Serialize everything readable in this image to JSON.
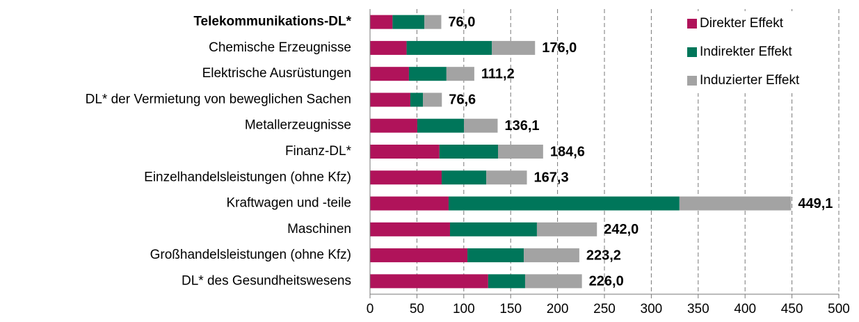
{
  "chart_data": {
    "type": "stacked-bar-horizontal",
    "categories": [
      "Telekommunikations-DL*",
      "Chemische Erzeugnisse",
      "Elektrische Ausrüstungen",
      "DL* der Vermietung von beweglichen Sachen",
      "Metallerzeugnisse",
      "Finanz-DL*",
      "Einzelhandelsleistungen  (ohne Kfz)",
      "Kraftwagen und -teile",
      "Maschinen",
      "Großhandelsleistungen  (ohne Kfz)",
      "DL* des Gesundheitswesens"
    ],
    "series": [
      {
        "name": "Direkter Effekt",
        "color": "#b0135a",
        "values": [
          24,
          39,
          41.5,
          43,
          50.4,
          74,
          76.4,
          83.8,
          85.3,
          103.9,
          126
        ]
      },
      {
        "name": "Indirekter Effekt",
        "color": "#00765a",
        "values": [
          34,
          91,
          40,
          13.4,
          49.8,
          62.5,
          47.6,
          246.2,
          92.7,
          60.1,
          39.4
        ]
      },
      {
        "name": "Induzierter Effekt",
        "color": "#a3a3a3",
        "values": [
          18,
          46,
          29.7,
          20.2,
          35.9,
          48.1,
          43.3,
          119.1,
          64.0,
          59.2,
          60.6
        ]
      }
    ],
    "totals": [
      76.0,
      176.0,
      111.2,
      76.6,
      136.1,
      184.6,
      167.3,
      449.1,
      242.0,
      223.2,
      226.0
    ],
    "total_labels": [
      "76,0",
      "176,0",
      "111,2",
      "76,6",
      "136,1",
      "184,6",
      "167,3",
      "449,1",
      "242,0",
      "223,2",
      "226,0"
    ],
    "xlim": [
      0,
      500
    ],
    "xticks": [
      0,
      50,
      100,
      150,
      200,
      250,
      300,
      350,
      400,
      450,
      500
    ],
    "grid": true,
    "legend": "top-right"
  }
}
